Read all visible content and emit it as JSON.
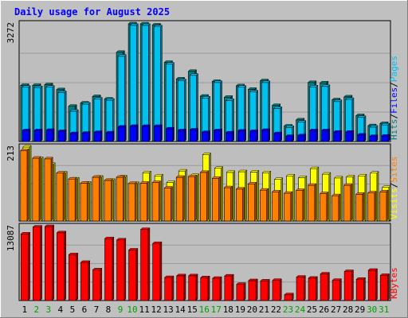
{
  "chart_data": {
    "type": "bar",
    "title": "Daily usage for August 2025",
    "categories": [
      "1",
      "2",
      "3",
      "4",
      "5",
      "6",
      "7",
      "8",
      "9",
      "10",
      "11",
      "12",
      "13",
      "14",
      "15",
      "16",
      "17",
      "18",
      "19",
      "20",
      "21",
      "22",
      "23",
      "24",
      "25",
      "26",
      "27",
      "28",
      "29",
      "30",
      "31"
    ],
    "weekend_days": [
      "2",
      "3",
      "9",
      "10",
      "16",
      "17",
      "23",
      "24",
      "30",
      "31"
    ],
    "panels": [
      {
        "id": "hits",
        "scale_max_label": "3272",
        "ylim": [
          0,
          3272
        ],
        "series": [
          {
            "name": "Hits",
            "color": "#008080",
            "values": [
              1560,
              1560,
              1580,
              1440,
              980,
              1070,
              1250,
              1180,
              2480,
              3272,
              3270,
              3240,
              2200,
              1740,
              1950,
              1260,
              1670,
              1230,
              1550,
              1450,
              1690,
              1000,
              430,
              600,
              1640,
              1630,
              1160,
              1240,
              720,
              440,
              500
            ]
          },
          {
            "name": "Files",
            "color": "#0000ff",
            "values": [
              300,
              300,
              310,
              280,
              220,
              230,
              250,
              240,
              400,
              420,
              420,
              420,
              350,
              300,
              320,
              250,
              300,
              240,
              290,
              280,
              310,
              220,
              140,
              160,
              300,
              300,
              260,
              260,
              180,
              140,
              150
            ]
          },
          {
            "name": "Pages",
            "color": "#00c0f0",
            "values": [
              1510,
              1500,
              1510,
              1360,
              840,
              1040,
              1180,
              1150,
              2370,
              3230,
              3230,
              3190,
              2150,
              1690,
              1840,
              1210,
              1640,
              1140,
              1510,
              1380,
              1640,
              920,
              390,
              540,
              1520,
              1530,
              1110,
              1170,
              670,
              400,
              460
            ]
          }
        ]
      },
      {
        "id": "visits",
        "scale_max_label": "213",
        "ylim": [
          0,
          213
        ],
        "series": [
          {
            "name": "Visits",
            "color": "#ffff00",
            "values": [
              213,
              180,
              163,
              138,
              121,
              109,
              126,
              117,
              127,
              108,
              139,
              130,
              111,
              144,
              131,
              191,
              152,
              140,
              142,
              141,
              139,
              120,
              130,
              125,
              151,
              135,
              124,
              127,
              130,
              138,
              97
            ]
          },
          {
            "name": "Sites",
            "color": "#ff8000",
            "values": [
              203,
              181,
              179,
              138,
              121,
              109,
              126,
              117,
              126,
              108,
              109,
              111,
              95,
              126,
              128,
              140,
              123,
              96,
              92,
              107,
              89,
              84,
              80,
              88,
              103,
              79,
              73,
              103,
              77,
              81,
              84
            ]
          }
        ]
      },
      {
        "id": "kbytes",
        "scale_max_label": "13087",
        "ylim": [
          0,
          13087
        ],
        "series": [
          {
            "name": "KBytes",
            "color": "#ff0000",
            "values": [
              11780,
              13000,
              13087,
              11990,
              8110,
              6760,
              5440,
              10950,
              10720,
              8940,
              12570,
              10100,
              4070,
              4380,
              4380,
              4040,
              3930,
              4340,
              2870,
              3520,
              3460,
              3560,
              1020,
              4130,
              3950,
              4700,
              3570,
              5130,
              3760,
              5350,
              4440
            ]
          }
        ]
      }
    ],
    "right_axis_separator": "/",
    "colors": {
      "background": "#c0c0c0",
      "plot_area": "#bebebe",
      "title": "#0000ff",
      "day_weekday": "#000000",
      "day_weekend": "#00a000"
    }
  }
}
